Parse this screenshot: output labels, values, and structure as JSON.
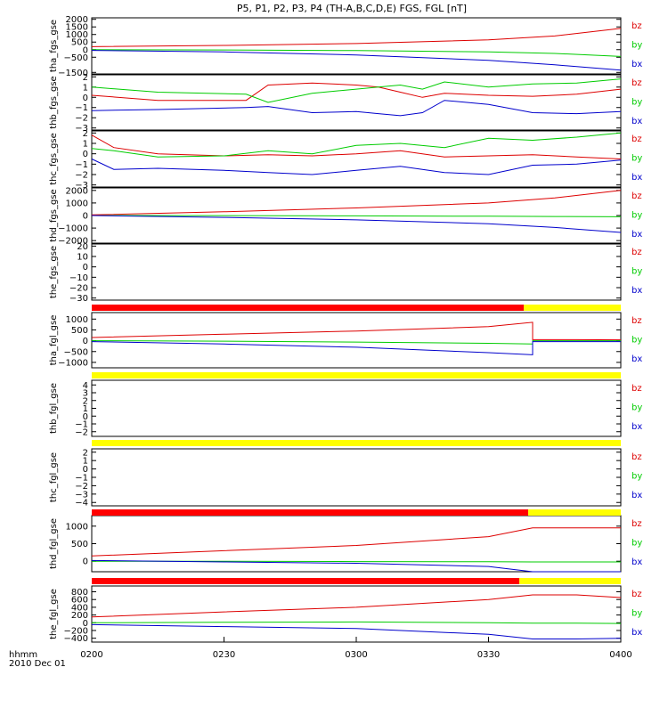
{
  "title": "P5, P1, P2, P3, P4 (TH-A,B,C,D,E) FGS, FGL [nT]",
  "time_axis": {
    "label_line1": "hhmm",
    "label_line2": "2010 Dec 01",
    "ticks": [
      "0200",
      "0230",
      "0300",
      "0330",
      "0400"
    ],
    "range": [
      "02:00",
      "04:00"
    ]
  },
  "colors": {
    "bz": "#dd0000",
    "by": "#00cc00",
    "bx": "#0000cc",
    "bar_red": "#ff0000",
    "bar_yellow": "#ffff00"
  },
  "chart_data": [
    {
      "type": "line",
      "ylabel": "tha_fgs_gse",
      "ylim": [
        -1600,
        2100
      ],
      "yticks": [
        2000,
        1500,
        1000,
        500,
        0,
        -500,
        -1500
      ],
      "x": [
        "02:00",
        "02:30",
        "03:00",
        "03:30",
        "03:45",
        "04:00"
      ],
      "series": [
        {
          "name": "bz",
          "values": [
            200,
            280,
            400,
            650,
            900,
            1400
          ]
        },
        {
          "name": "by",
          "values": [
            0,
            -20,
            -60,
            -150,
            -250,
            -450
          ]
        },
        {
          "name": "bx",
          "values": [
            -50,
            -150,
            -350,
            -700,
            -1000,
            -1350
          ]
        }
      ]
    },
    {
      "type": "line",
      "ylabel": "thb_fgs_gse",
      "ylim": [
        -3.2,
        2.2
      ],
      "yticks": [
        2,
        1,
        0,
        -1,
        -2,
        -3
      ],
      "x": [
        "02:00",
        "02:15",
        "02:35",
        "02:40",
        "02:50",
        "03:00",
        "03:05",
        "03:10",
        "03:15",
        "03:20",
        "03:30",
        "03:40",
        "03:50",
        "04:00"
      ],
      "series": [
        {
          "name": "bz",
          "values": [
            0.2,
            -0.3,
            -0.3,
            1.2,
            1.4,
            1.2,
            1.0,
            0.5,
            0.0,
            0.4,
            0.2,
            0.1,
            0.3,
            0.8
          ]
        },
        {
          "name": "by",
          "values": [
            1.0,
            0.5,
            0.3,
            -0.5,
            0.4,
            0.8,
            1.0,
            1.2,
            0.8,
            1.5,
            1.0,
            1.3,
            1.4,
            1.8
          ]
        },
        {
          "name": "bx",
          "values": [
            -1.3,
            -1.2,
            -1.0,
            -0.9,
            -1.5,
            -1.4,
            -1.6,
            -1.8,
            -1.5,
            -0.3,
            -0.7,
            -1.5,
            -1.6,
            -1.4
          ]
        }
      ]
    },
    {
      "type": "line",
      "ylabel": "thc_fgs_gse",
      "ylim": [
        -3.2,
        2.2
      ],
      "yticks": [
        2,
        1,
        0,
        -1,
        -2,
        -3
      ],
      "x": [
        "02:00",
        "02:05",
        "02:15",
        "02:30",
        "02:40",
        "02:50",
        "03:00",
        "03:10",
        "03:20",
        "03:30",
        "03:40",
        "03:50",
        "04:00"
      ],
      "series": [
        {
          "name": "bz",
          "values": [
            1.8,
            0.6,
            0.0,
            -0.2,
            -0.1,
            -0.2,
            0.0,
            0.3,
            -0.3,
            -0.2,
            -0.1,
            -0.3,
            -0.5
          ]
        },
        {
          "name": "by",
          "values": [
            0.5,
            0.3,
            -0.3,
            -0.2,
            0.3,
            0.0,
            0.8,
            1.0,
            0.6,
            1.5,
            1.3,
            1.6,
            2.0
          ]
        },
        {
          "name": "bx",
          "values": [
            -0.5,
            -1.5,
            -1.4,
            -1.6,
            -1.8,
            -2.0,
            -1.6,
            -1.2,
            -1.8,
            -2.0,
            -1.1,
            -1.0,
            -0.6
          ]
        }
      ]
    },
    {
      "type": "line",
      "ylabel": "thd_fgs_gse",
      "ylim": [
        -2200,
        2200
      ],
      "yticks": [
        2000,
        1000,
        0,
        -1000,
        -2000
      ],
      "x": [
        "02:00",
        "02:30",
        "03:00",
        "03:30",
        "03:45",
        "04:00"
      ],
      "series": [
        {
          "name": "bz",
          "values": [
            50,
            300,
            600,
            1000,
            1400,
            2000
          ]
        },
        {
          "name": "by",
          "values": [
            0,
            -10,
            -30,
            -60,
            -80,
            -100
          ]
        },
        {
          "name": "bx",
          "values": [
            0,
            -150,
            -350,
            -650,
            -950,
            -1350
          ]
        }
      ]
    },
    {
      "type": "line",
      "ylabel": "the_fgs_gse",
      "ylim": [
        -32,
        22
      ],
      "yticks": [
        20,
        10,
        0,
        -10,
        -20,
        -30
      ],
      "x": [],
      "series": []
    },
    {
      "type": "line",
      "ylabel": "tha_fgl_gse",
      "ylim": [
        -1250,
        1300
      ],
      "yticks": [
        1000,
        500,
        0,
        -500,
        -1000
      ],
      "x": [
        "02:00",
        "02:30",
        "03:00",
        "03:30",
        "03:40",
        "03:40",
        "03:50",
        "04:00"
      ],
      "series": [
        {
          "name": "bz",
          "values": [
            150,
            300,
            450,
            650,
            850,
            50,
            50,
            40
          ]
        },
        {
          "name": "by",
          "values": [
            0,
            -20,
            -60,
            -120,
            -150,
            0,
            0,
            0
          ]
        },
        {
          "name": "bx",
          "values": [
            -40,
            -150,
            -300,
            -550,
            -650,
            -40,
            -40,
            -40
          ]
        }
      ]
    },
    {
      "type": "line",
      "ylabel": "thb_fgl_gse",
      "ylim": [
        -2.6,
        4.6
      ],
      "yticks": [
        4,
        3,
        2,
        1,
        0,
        -1,
        -2
      ],
      "x": [],
      "series": []
    },
    {
      "type": "line",
      "ylabel": "thc_fgl_gse",
      "ylim": [
        -4.4,
        2.4
      ],
      "yticks": [
        2,
        1,
        0,
        -1,
        -2,
        -3,
        -4
      ],
      "x": [],
      "series": []
    },
    {
      "type": "line",
      "ylabel": "thd_fgl_gse",
      "ylim": [
        -300,
        1300
      ],
      "yticks": [
        1000,
        500,
        0
      ],
      "x": [
        "02:00",
        "02:30",
        "03:00",
        "03:30",
        "03:40",
        "03:50",
        "04:00"
      ],
      "series": [
        {
          "name": "bz",
          "values": [
            150,
            300,
            450,
            700,
            950,
            950,
            950
          ]
        },
        {
          "name": "by",
          "values": [
            0,
            0,
            -10,
            -15,
            -20,
            -20,
            -20
          ]
        },
        {
          "name": "bx",
          "values": [
            20,
            -20,
            -60,
            -150,
            -300,
            -300,
            -300
          ]
        }
      ]
    },
    {
      "type": "line",
      "ylabel": "the_fgl_gse",
      "ylim": [
        -500,
        950
      ],
      "yticks": [
        800,
        600,
        400,
        200,
        0,
        -200,
        -400
      ],
      "x": [
        "02:00",
        "02:30",
        "03:00",
        "03:30",
        "03:40",
        "03:50",
        "04:00"
      ],
      "series": [
        {
          "name": "bz",
          "values": [
            150,
            280,
            400,
            600,
            720,
            720,
            650
          ]
        },
        {
          "name": "by",
          "values": [
            0,
            10,
            20,
            0,
            -10,
            -10,
            -20
          ]
        },
        {
          "name": "bx",
          "values": [
            -50,
            -100,
            -150,
            -300,
            -420,
            -420,
            -400
          ]
        }
      ]
    }
  ],
  "mode_bars": [
    {
      "after_panel": 4,
      "segments": [
        {
          "color": "red",
          "from": "02:00",
          "to": "03:38"
        },
        {
          "color": "yellow",
          "from": "03:38",
          "to": "04:00"
        }
      ]
    },
    {
      "after_panel": 5,
      "segments": [
        {
          "color": "yellow",
          "from": "02:00",
          "to": "04:00"
        }
      ]
    },
    {
      "after_panel": 6,
      "segments": [
        {
          "color": "yellow",
          "from": "02:00",
          "to": "04:00"
        }
      ]
    },
    {
      "after_panel": 7,
      "segments": [
        {
          "color": "red",
          "from": "02:00",
          "to": "03:39"
        },
        {
          "color": "yellow",
          "from": "03:39",
          "to": "04:00"
        }
      ]
    },
    {
      "after_panel": 8,
      "segments": [
        {
          "color": "red",
          "from": "02:00",
          "to": "03:37"
        },
        {
          "color": "yellow",
          "from": "03:37",
          "to": "04:00"
        }
      ]
    }
  ],
  "legend_order": [
    "bz",
    "by",
    "bx"
  ]
}
